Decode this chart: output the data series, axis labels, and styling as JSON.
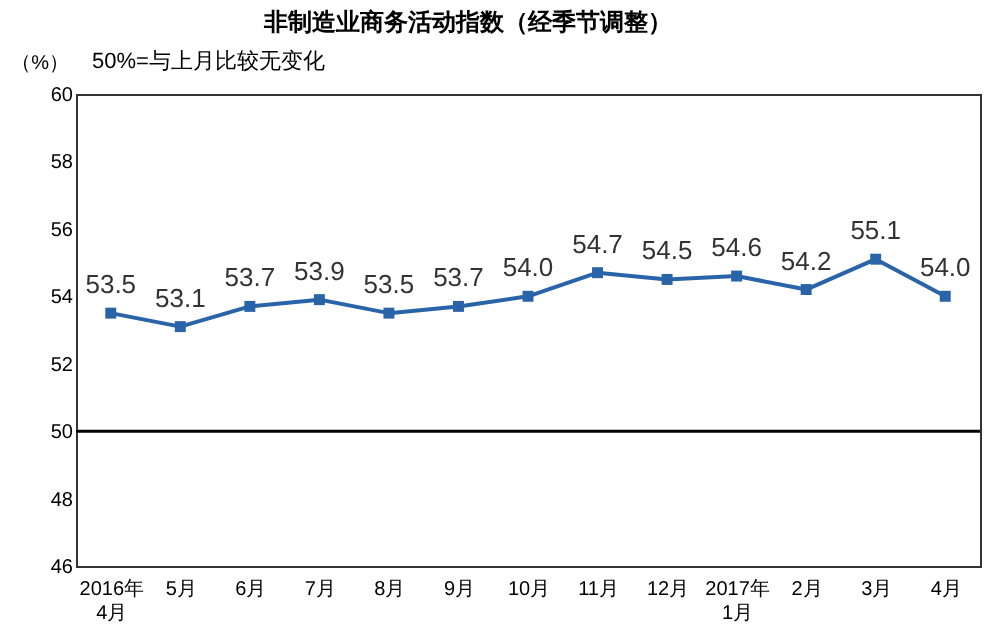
{
  "chart_data": {
    "type": "line",
    "title": "非制造业商务活动指数（经季节调整）",
    "ylabel": "（%）",
    "annotations": [
      "50%=与上月比较无变化"
    ],
    "categories": [
      "2016年\n4月",
      "5月",
      "6月",
      "7月",
      "8月",
      "9月",
      "10月",
      "11月",
      "12月",
      "2017年\n1月",
      "2月",
      "3月",
      "4月"
    ],
    "series": [
      {
        "color": "#2a64a8",
        "values": [
          53.5,
          53.1,
          53.7,
          53.9,
          53.5,
          53.7,
          54.0,
          54.7,
          54.5,
          54.6,
          54.2,
          55.1,
          54.0
        ],
        "value_labels": [
          "53.5",
          "53.1",
          "53.7",
          "53.9",
          "53.5",
          "53.7",
          "54.0",
          "54.7",
          "54.5",
          "54.6",
          "54.2",
          "55.1",
          "54.0"
        ]
      }
    ],
    "ylim": [
      46,
      60
    ],
    "yticks": [
      46,
      48,
      50,
      52,
      54,
      56,
      58,
      60
    ],
    "marker": "square",
    "line_style": "solid",
    "ref_lines": [
      {
        "axis": "y",
        "value": 50,
        "color": "#000000"
      }
    ]
  }
}
